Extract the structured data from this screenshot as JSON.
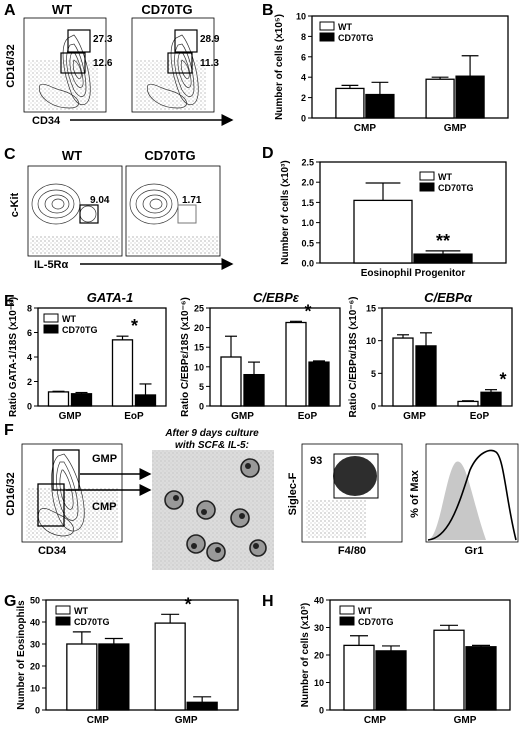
{
  "panels": {
    "A": {
      "letter": "A",
      "titles": [
        "WT",
        "CD70TG"
      ],
      "ylabel": "CD16/32",
      "xlabel": "CD34",
      "gates": [
        {
          "upper": "27.3",
          "lower": "12.6"
        },
        {
          "upper": "28.9",
          "lower": "11.3"
        }
      ]
    },
    "C": {
      "letter": "C",
      "titles": [
        "WT",
        "CD70TG"
      ],
      "ylabel": "c-Kit",
      "xlabel": "IL-5Rα",
      "gates": [
        "9.04",
        "1.71"
      ]
    },
    "F": {
      "letter": "F",
      "ylabel": "CD16/32",
      "xlabel": "CD34",
      "gmp": "GMP",
      "cmp": "CMP",
      "culture_label_1": "After 9 days culture",
      "culture_label_2": "with SCF& IL-5:",
      "siglec_label": "Siglec-F",
      "f480_label": "F4/80",
      "siglec_pct": "93",
      "hist_ylabel": "% of Max",
      "hist_xlabel": "Gr1"
    }
  },
  "colors": {
    "wt": "#ffffff",
    "tg": "#000000"
  },
  "chart_data": [
    {
      "id": "B",
      "letter": "B",
      "type": "bar",
      "categories": [
        "CMP",
        "GMP"
      ],
      "series": [
        {
          "name": "WT",
          "values": [
            2.9,
            3.8
          ],
          "errors": [
            0.3,
            0.2
          ]
        },
        {
          "name": "CD70TG",
          "values": [
            2.3,
            4.1
          ],
          "errors": [
            1.2,
            2.0
          ]
        }
      ],
      "ylabel": "Number of cells (x10⁵)",
      "ylim": [
        0,
        10
      ],
      "yticks": [
        0,
        2,
        4,
        6,
        8,
        10
      ],
      "legend": "top-left",
      "stars": []
    },
    {
      "id": "D",
      "letter": "D",
      "type": "bar",
      "categories": [
        "Eosinophil Progenitor"
      ],
      "series": [
        {
          "name": "WT",
          "values": [
            1.55
          ],
          "errors": [
            0.43
          ]
        },
        {
          "name": "CD70TG",
          "values": [
            0.22
          ],
          "errors": [
            0.08
          ]
        }
      ],
      "ylabel": "Number of cells (x10³)",
      "ylim": [
        0,
        2.5
      ],
      "yticks": [
        0.0,
        0.5,
        1.0,
        1.5,
        2.0,
        2.5
      ],
      "legend": "top-right",
      "stars": [
        {
          "cat": 0,
          "series": 1,
          "text": "**"
        }
      ]
    },
    {
      "id": "E1",
      "letter": "E",
      "type": "bar",
      "title": "GATA-1",
      "categories": [
        "GMP",
        "EoP"
      ],
      "series": [
        {
          "name": "WT",
          "values": [
            1.15,
            5.4
          ],
          "errors": [
            0.05,
            0.3
          ]
        },
        {
          "name": "CD70TG",
          "values": [
            1.0,
            0.9
          ],
          "errors": [
            0.1,
            0.9
          ]
        }
      ],
      "ylabel": "Ratio GATA-1/18S (x10⁻⁶)",
      "ylim": [
        0,
        8
      ],
      "yticks": [
        0,
        2,
        4,
        6,
        8
      ],
      "legend": "top-left",
      "stars": [
        {
          "cat": 1,
          "series": 0,
          "text": "*"
        }
      ]
    },
    {
      "id": "E2",
      "type": "bar",
      "title": "C/EBPε",
      "categories": [
        "GMP",
        "EoP"
      ],
      "series": [
        {
          "name": "WT",
          "values": [
            12.5,
            21.3
          ],
          "errors": [
            5.3,
            0.3
          ]
        },
        {
          "name": "CD70TG",
          "values": [
            8.0,
            11.2
          ],
          "errors": [
            3.2,
            0.3
          ]
        }
      ],
      "ylabel": "Ratio C/EBPε/18S (x10⁻⁶)",
      "ylim": [
        0,
        25
      ],
      "yticks": [
        0,
        5,
        10,
        15,
        20,
        25
      ],
      "legend": "none",
      "stars": [
        {
          "cat": 1,
          "series": 0,
          "text": "*"
        }
      ]
    },
    {
      "id": "E3",
      "type": "bar",
      "title": "C/EBPα",
      "categories": [
        "GMP",
        "EoP"
      ],
      "series": [
        {
          "name": "WT",
          "values": [
            10.4,
            0.7
          ],
          "errors": [
            0.5,
            0.1
          ]
        },
        {
          "name": "CD70TG",
          "values": [
            9.2,
            2.1
          ],
          "errors": [
            2.0,
            0.4
          ]
        }
      ],
      "ylabel": "Ratio C/EBPα/18S (x10⁻⁶)",
      "ylim": [
        0,
        15
      ],
      "yticks": [
        0,
        5,
        10,
        15
      ],
      "legend": "none",
      "stars": [
        {
          "cat": 1,
          "series": 1,
          "text": "*"
        }
      ]
    },
    {
      "id": "G",
      "letter": "G",
      "type": "bar",
      "categories": [
        "CMP",
        "GMP"
      ],
      "series": [
        {
          "name": "WT",
          "values": [
            30,
            39.5
          ],
          "errors": [
            5.5,
            4.0
          ]
        },
        {
          "name": "CD70TG",
          "values": [
            30,
            3.5
          ],
          "errors": [
            2.5,
            2.5
          ]
        }
      ],
      "ylabel": "Number of Eosinophils",
      "ylim": [
        0,
        50
      ],
      "yticks": [
        0,
        10,
        20,
        30,
        40,
        50
      ],
      "legend": "top-left",
      "stars": [
        {
          "cat": 1,
          "series": 0,
          "text": "*"
        }
      ]
    },
    {
      "id": "H",
      "letter": "H",
      "type": "bar",
      "categories": [
        "CMP",
        "GMP"
      ],
      "series": [
        {
          "name": "WT",
          "values": [
            23.5,
            29
          ],
          "errors": [
            3.5,
            1.8
          ]
        },
        {
          "name": "CD70TG",
          "values": [
            21.5,
            23
          ],
          "errors": [
            1.8,
            0.5
          ]
        }
      ],
      "ylabel": "Number of cells (x10³)",
      "ylim": [
        0,
        40
      ],
      "yticks": [
        0,
        10,
        20,
        30,
        40
      ],
      "legend": "top-left",
      "stars": []
    }
  ]
}
